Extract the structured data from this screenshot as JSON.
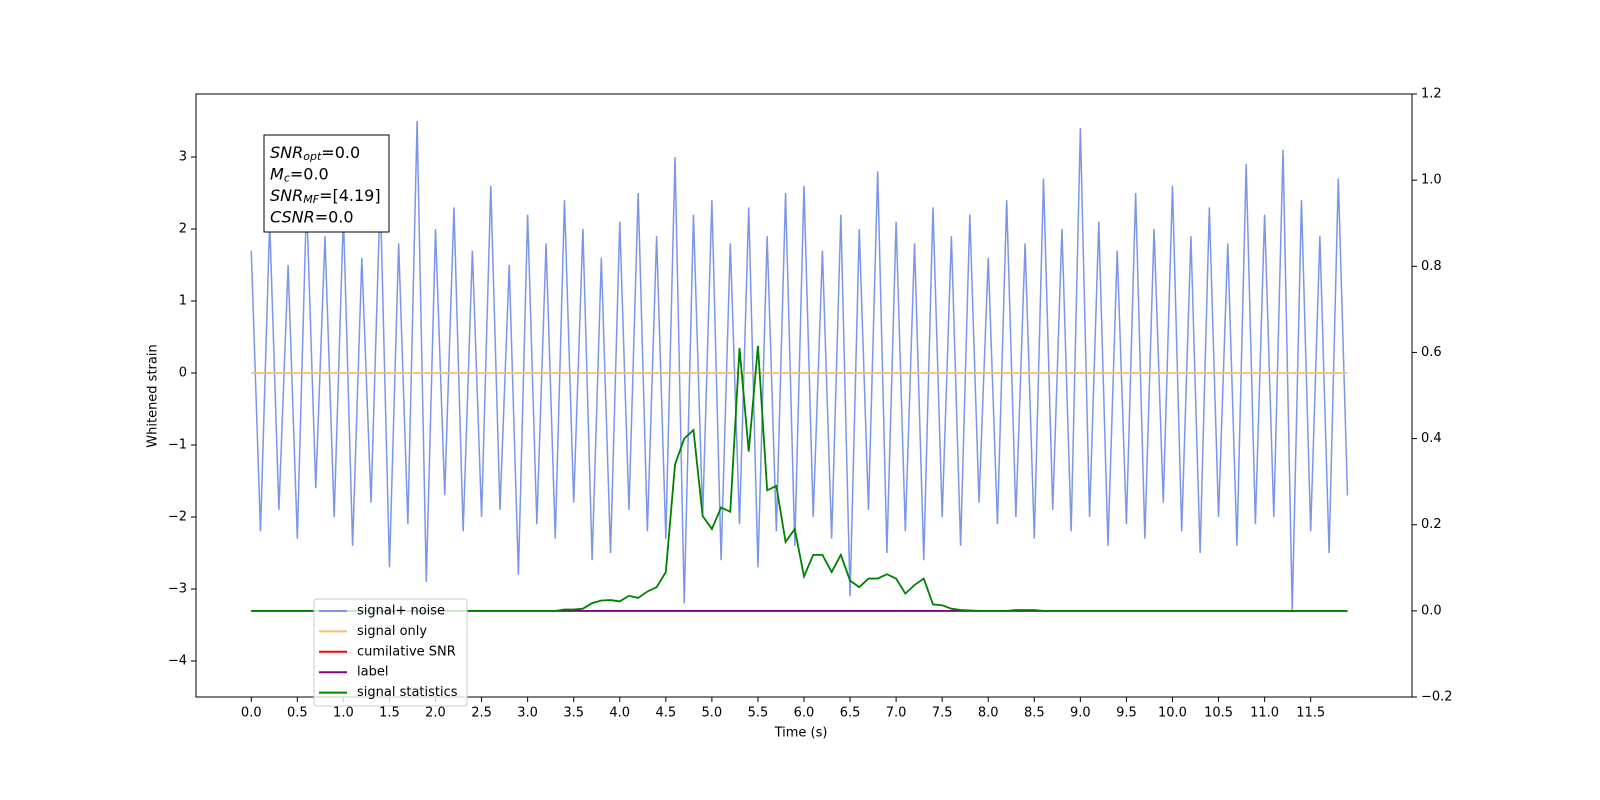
{
  "chart_data": {
    "type": "line",
    "xlabel": "Time (s)",
    "ylabel": "Whitened strain",
    "annotation": [
      {
        "text": "SNR",
        "sub": "opt",
        "value": "=0.0"
      },
      {
        "text": "M",
        "sub": "c",
        "value": "=0.0"
      },
      {
        "text": "SNR",
        "sub": "MF",
        "value": "=[4.19]"
      },
      {
        "text": "CSNR",
        "value": "=0.0"
      }
    ],
    "legend": "lower left",
    "xlim": [
      -0.6,
      12.6
    ],
    "ylim": [
      -4.5,
      3.875
    ],
    "y2lim": [
      -0.2,
      1.2
    ],
    "xticks": [
      {
        "value": 0,
        "label": "0.0"
      },
      0.5,
      {
        "value": 1,
        "label": "1.0"
      },
      1.5,
      {
        "value": 2,
        "label": "2.0"
      },
      2.5,
      {
        "value": 3,
        "label": "3.0"
      },
      3.5,
      {
        "value": 4,
        "label": "4.0"
      },
      4.5,
      {
        "value": 5,
        "label": "5.0"
      },
      5.5,
      {
        "value": 6,
        "label": "6.0"
      },
      6.5,
      {
        "value": 7,
        "label": "7.0"
      },
      7.5,
      {
        "value": 8,
        "label": "8.0"
      },
      8.5,
      {
        "value": 9,
        "label": "9.0"
      },
      9.5,
      {
        "value": 10,
        "label": "10.0"
      },
      10.5,
      {
        "value": 11,
        "label": "11.0"
      },
      11.5
    ],
    "yticks": [
      {
        "value": -4,
        "label": "−4"
      },
      {
        "value": -3,
        "label": "−3"
      },
      {
        "value": -2,
        "label": "−2"
      },
      {
        "value": -1,
        "label": "−1"
      },
      0,
      1,
      2,
      3
    ],
    "y2ticks": [
      {
        "value": -0.2,
        "label": "−0.2"
      },
      {
        "value": 0,
        "label": "0.0"
      },
      0.2,
      0.4,
      0.6,
      0.8,
      {
        "value": 1,
        "label": "1.0"
      },
      1.2
    ],
    "x": [
      0.0,
      0.1,
      0.2,
      0.3,
      0.4,
      0.5,
      0.6,
      0.7,
      0.8,
      0.9,
      1.0,
      1.1,
      1.2,
      1.3,
      1.4,
      1.5,
      1.6,
      1.7,
      1.8,
      1.9,
      2.0,
      2.1,
      2.2,
      2.3,
      2.4,
      2.5,
      2.6,
      2.7,
      2.8,
      2.9,
      3.0,
      3.1,
      3.2,
      3.3,
      3.4,
      3.5,
      3.6,
      3.7,
      3.8,
      3.9,
      4.0,
      4.1,
      4.2,
      4.3,
      4.4,
      4.5,
      4.6,
      4.7,
      4.8,
      4.9,
      5.0,
      5.1,
      5.2,
      5.3,
      5.4,
      5.5,
      5.6,
      5.7,
      5.8,
      5.9,
      6.0,
      6.1,
      6.2,
      6.3,
      6.4,
      6.5,
      6.6,
      6.7,
      6.8,
      6.9,
      7.0,
      7.1,
      7.2,
      7.3,
      7.4,
      7.5,
      7.6,
      7.7,
      7.8,
      7.9,
      8.0,
      8.1,
      8.2,
      8.3,
      8.4,
      8.5,
      8.6,
      8.7,
      8.8,
      8.9,
      9.0,
      9.1,
      9.2,
      9.3,
      9.4,
      9.5,
      9.6,
      9.7,
      9.8,
      9.9,
      10.0,
      10.1,
      10.2,
      10.3,
      10.4,
      10.5,
      10.6,
      10.7,
      10.8,
      10.9,
      11.0,
      11.1,
      11.2,
      11.3,
      11.4,
      11.5,
      11.6,
      11.7,
      11.8,
      11.9
    ],
    "series": [
      {
        "name": "signal+ noise",
        "color": "#7b96e8",
        "values": [
          1.7,
          -2.2,
          2.1,
          -1.9,
          1.5,
          -2.3,
          2.4,
          -1.6,
          1.9,
          -2.0,
          2.2,
          -2.4,
          1.6,
          -1.8,
          2.5,
          -2.7,
          1.8,
          -2.1,
          3.5,
          -2.9,
          2.0,
          -1.7,
          2.3,
          -2.2,
          1.7,
          -2.0,
          2.6,
          -1.9,
          1.5,
          -2.8,
          2.2,
          -2.1,
          1.8,
          -2.3,
          2.4,
          -1.8,
          2.0,
          -2.6,
          1.6,
          -2.5,
          2.1,
          -1.9,
          2.5,
          -2.2,
          1.9,
          -2.3,
          3.0,
          -3.2,
          2.2,
          -2.0,
          2.4,
          -2.6,
          1.8,
          -2.1,
          2.3,
          -2.7,
          1.9,
          -2.2,
          2.5,
          -2.4,
          2.6,
          -2.0,
          1.7,
          -2.3,
          2.2,
          -3.1,
          2.0,
          -1.9,
          2.8,
          -2.5,
          2.1,
          -2.2,
          1.8,
          -2.6,
          2.3,
          -2.0,
          1.9,
          -2.4,
          2.2,
          -1.8,
          1.6,
          -2.1,
          2.4,
          -2.0,
          1.8,
          -2.3,
          2.7,
          -1.9,
          2.0,
          -2.2,
          3.4,
          -2.0,
          2.1,
          -2.4,
          1.7,
          -2.1,
          2.5,
          -2.3,
          2.0,
          -1.8,
          2.6,
          -2.2,
          1.9,
          -2.5,
          2.3,
          -2.0,
          1.8,
          -2.4,
          2.9,
          -2.1,
          2.2,
          -2.0,
          3.1,
          -3.3,
          2.4,
          -2.2,
          1.9,
          -2.5,
          2.7,
          -1.7
        ]
      },
      {
        "name": "signal only",
        "color": "#f5bf70",
        "x": [
          0.0,
          11.9
        ],
        "values": [
          0,
          0
        ]
      },
      {
        "name": "cumilative SNR",
        "color": "#ff0000",
        "axis": "y2",
        "x": [
          0.0,
          11.9
        ],
        "values": [
          0,
          0
        ]
      },
      {
        "name": "label",
        "color": "#800080",
        "axis": "y2",
        "x": [
          0.0,
          11.9
        ],
        "values": [
          0,
          0
        ]
      },
      {
        "name": "signal statistics",
        "color": "#008000",
        "axis": "y2",
        "values": [
          0,
          0,
          0,
          0,
          0,
          0,
          0,
          0,
          0,
          0,
          0,
          0,
          0,
          0,
          0,
          0,
          0,
          0,
          0,
          0,
          0,
          0,
          0,
          0,
          0,
          0,
          0,
          0,
          0,
          0,
          0,
          0,
          0,
          0,
          0.003,
          0.003,
          0.005,
          0.018,
          0.024,
          0.025,
          0.022,
          0.035,
          0.03,
          0.045,
          0.055,
          0.09,
          0.34,
          0.4,
          0.42,
          0.22,
          0.19,
          0.24,
          0.23,
          0.61,
          0.37,
          0.615,
          0.28,
          0.29,
          0.16,
          0.19,
          0.08,
          0.13,
          0.13,
          0.09,
          0.13,
          0.07,
          0.055,
          0.075,
          0.075,
          0.085,
          0.075,
          0.04,
          0.06,
          0.075,
          0.015,
          0.013,
          0.005,
          0.002,
          0.001,
          0,
          0,
          0,
          0,
          0.002,
          0.002,
          0.002,
          0,
          0,
          0,
          0,
          0,
          0,
          0,
          0,
          0,
          0,
          0,
          0,
          0,
          0,
          0,
          0,
          0,
          0,
          0,
          0,
          0,
          0,
          0,
          0,
          0,
          0,
          0,
          0,
          0,
          0,
          0,
          0,
          0,
          0
        ]
      }
    ]
  }
}
